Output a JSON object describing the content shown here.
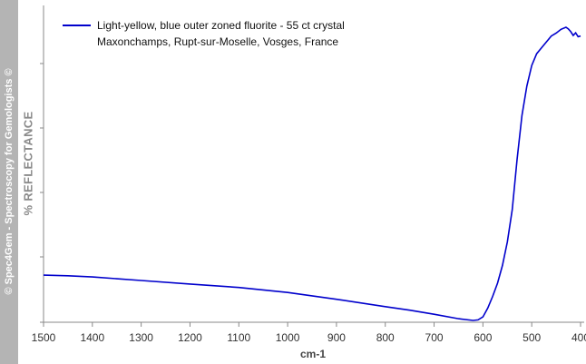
{
  "watermark": "© Spec4Gem - Spectroscopy for Gemologists ©",
  "chart_data": {
    "type": "line",
    "xlabel": "cm-1",
    "ylabel": "% REFLECTANCE",
    "xlim": [
      1500,
      400
    ],
    "x_ticks": [
      1500,
      1400,
      1300,
      1200,
      1100,
      1000,
      900,
      800,
      700,
      600,
      500,
      400
    ],
    "ylim": [
      0,
      100
    ],
    "y_ticks_labeled": false,
    "grid": false,
    "legend_position": "top-left",
    "colors": {
      "series": "#0000cc",
      "axis": "#888888"
    },
    "series": [
      {
        "name_lines": [
          "Light-yellow, blue outer zoned fluorite - 55 ct crystal",
          "Maxonchamps, Rupt-sur-Moselle, Vosges, France"
        ],
        "x": [
          1500,
          1450,
          1400,
          1300,
          1200,
          1100,
          1000,
          900,
          800,
          750,
          700,
          650,
          620,
          610,
          600,
          590,
          580,
          570,
          560,
          550,
          540,
          530,
          520,
          510,
          500,
          490,
          480,
          470,
          460,
          450,
          440,
          430,
          425,
          420,
          415,
          410,
          405,
          400
        ],
        "y": [
          15.7,
          15.5,
          15.1,
          13.9,
          12.7,
          11.5,
          9.8,
          7.5,
          5.0,
          3.8,
          2.4,
          0.9,
          0.3,
          0.5,
          1.5,
          4.5,
          8.5,
          13,
          19,
          27,
          38,
          55,
          70,
          80,
          87,
          91,
          93,
          95,
          97,
          98,
          99.3,
          100,
          99.4,
          98.5,
          97.2,
          98.1,
          96.8,
          97
        ]
      }
    ]
  }
}
